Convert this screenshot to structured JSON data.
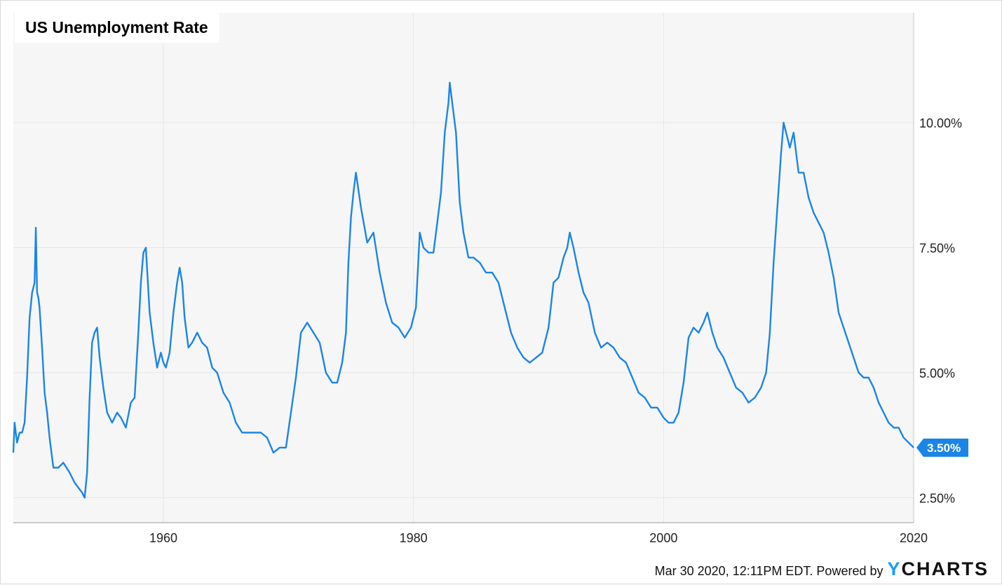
{
  "title": "US Unemployment Rate",
  "footer": {
    "timestamp": "Mar 30 2020, 12:11PM EDT.",
    "powered_by": "Powered by",
    "logo_y": "Y",
    "logo_rest": "CHARTS"
  },
  "colors": {
    "line": "#1a85e6",
    "plot_bg": "#f6f6f6",
    "grid": "#e6e6e6",
    "badge": "#1a85e6"
  },
  "chart_data": {
    "type": "line",
    "title": "US Unemployment Rate",
    "xlabel": "",
    "ylabel": "",
    "x_ticks": [
      "1960",
      "1980",
      "2000",
      "2020"
    ],
    "y_ticks": [
      "2.50%",
      "5.00%",
      "7.50%",
      "10.00%"
    ],
    "xlim": [
      1948.0,
      2020.0
    ],
    "ylim": [
      2.0,
      12.2
    ],
    "grid": true,
    "last_value_label": "3.50%",
    "series": [
      {
        "x": [
          1948.0,
          1948.1,
          1948.3,
          1948.5,
          1948.7,
          1948.9,
          1949.1,
          1949.3,
          1949.5,
          1949.7,
          1949.8,
          1949.9,
          1950.0,
          1950.1,
          1950.3,
          1950.5,
          1950.7,
          1950.9,
          1951.2,
          1951.6,
          1952.0,
          1952.5,
          1952.9,
          1953.2,
          1953.5,
          1953.7,
          1953.9,
          1954.1,
          1954.3,
          1954.5,
          1954.7,
          1954.9,
          1955.2,
          1955.5,
          1955.9,
          1956.3,
          1956.6,
          1957.0,
          1957.4,
          1957.7,
          1958.0,
          1958.2,
          1958.4,
          1958.6,
          1958.9,
          1959.2,
          1959.5,
          1959.8,
          1960.0,
          1960.2,
          1960.5,
          1960.8,
          1961.1,
          1961.3,
          1961.5,
          1961.7,
          1962.0,
          1962.3,
          1962.7,
          1963.1,
          1963.5,
          1963.9,
          1964.3,
          1964.8,
          1965.3,
          1965.8,
          1966.3,
          1966.8,
          1967.3,
          1967.8,
          1968.3,
          1968.8,
          1969.3,
          1969.8,
          1970.2,
          1970.6,
          1971.0,
          1971.5,
          1972.0,
          1972.5,
          1973.0,
          1973.5,
          1973.9,
          1974.3,
          1974.6,
          1974.8,
          1975.0,
          1975.2,
          1975.4,
          1975.8,
          1976.3,
          1976.8,
          1977.3,
          1977.8,
          1978.3,
          1978.8,
          1979.3,
          1979.8,
          1980.2,
          1980.5,
          1980.8,
          1981.2,
          1981.6,
          1981.9,
          1982.2,
          1982.5,
          1982.8,
          1982.9,
          1983.1,
          1983.4,
          1983.7,
          1984.0,
          1984.4,
          1984.8,
          1985.3,
          1985.8,
          1986.3,
          1986.8,
          1987.3,
          1987.8,
          1988.3,
          1988.8,
          1989.3,
          1989.8,
          1990.3,
          1990.8,
          1991.2,
          1991.6,
          1992.0,
          1992.3,
          1992.5,
          1992.8,
          1993.2,
          1993.6,
          1994.0,
          1994.5,
          1995.0,
          1995.5,
          1996.0,
          1996.5,
          1997.0,
          1997.5,
          1998.0,
          1998.5,
          1999.0,
          1999.5,
          2000.0,
          2000.4,
          2000.8,
          2001.2,
          2001.6,
          2002.0,
          2002.4,
          2002.8,
          2003.2,
          2003.5,
          2003.9,
          2004.3,
          2004.8,
          2005.3,
          2005.8,
          2006.3,
          2006.8,
          2007.3,
          2007.8,
          2008.2,
          2008.5,
          2008.8,
          2009.1,
          2009.4,
          2009.6,
          2009.8,
          2010.1,
          2010.4,
          2010.8,
          2011.2,
          2011.6,
          2012.0,
          2012.4,
          2012.8,
          2013.2,
          2013.6,
          2014.0,
          2014.4,
          2014.8,
          2015.2,
          2015.6,
          2016.0,
          2016.4,
          2016.8,
          2017.2,
          2017.6,
          2018.0,
          2018.4,
          2018.8,
          2019.2,
          2019.6,
          2020.0
        ],
        "values": [
          3.4,
          4.0,
          3.6,
          3.8,
          3.8,
          4.0,
          4.9,
          6.1,
          6.6,
          6.8,
          7.9,
          6.6,
          6.5,
          6.3,
          5.5,
          4.6,
          4.2,
          3.7,
          3.1,
          3.1,
          3.2,
          3.0,
          2.8,
          2.7,
          2.6,
          2.5,
          3.0,
          4.5,
          5.6,
          5.8,
          5.9,
          5.3,
          4.7,
          4.2,
          4.0,
          4.2,
          4.1,
          3.9,
          4.4,
          4.5,
          5.8,
          6.8,
          7.4,
          7.5,
          6.2,
          5.6,
          5.1,
          5.4,
          5.2,
          5.1,
          5.4,
          6.2,
          6.8,
          7.1,
          6.8,
          6.1,
          5.5,
          5.6,
          5.8,
          5.6,
          5.5,
          5.1,
          5.0,
          4.6,
          4.4,
          4.0,
          3.8,
          3.8,
          3.8,
          3.8,
          3.7,
          3.4,
          3.5,
          3.5,
          4.2,
          4.9,
          5.8,
          6.0,
          5.8,
          5.6,
          5.0,
          4.8,
          4.8,
          5.2,
          5.8,
          7.2,
          8.1,
          8.6,
          9.0,
          8.3,
          7.6,
          7.8,
          7.0,
          6.4,
          6.0,
          5.9,
          5.7,
          5.9,
          6.3,
          7.8,
          7.5,
          7.4,
          7.4,
          8.0,
          8.6,
          9.8,
          10.4,
          10.8,
          10.4,
          9.8,
          8.4,
          7.8,
          7.3,
          7.3,
          7.2,
          7.0,
          7.0,
          6.8,
          6.3,
          5.8,
          5.5,
          5.3,
          5.2,
          5.3,
          5.4,
          5.9,
          6.8,
          6.9,
          7.3,
          7.5,
          7.8,
          7.5,
          7.0,
          6.6,
          6.4,
          5.8,
          5.5,
          5.6,
          5.5,
          5.3,
          5.2,
          4.9,
          4.6,
          4.5,
          4.3,
          4.3,
          4.1,
          4.0,
          4.0,
          4.2,
          4.8,
          5.7,
          5.9,
          5.8,
          6.0,
          6.2,
          5.8,
          5.5,
          5.3,
          5.0,
          4.7,
          4.6,
          4.4,
          4.5,
          4.7,
          5.0,
          5.8,
          7.2,
          8.3,
          9.4,
          10.0,
          9.8,
          9.5,
          9.8,
          9.0,
          9.0,
          8.5,
          8.2,
          8.0,
          7.8,
          7.4,
          6.9,
          6.2,
          5.9,
          5.6,
          5.3,
          5.0,
          4.9,
          4.9,
          4.7,
          4.4,
          4.2,
          4.0,
          3.9,
          3.9,
          3.7,
          3.6,
          3.5
        ]
      }
    ]
  }
}
